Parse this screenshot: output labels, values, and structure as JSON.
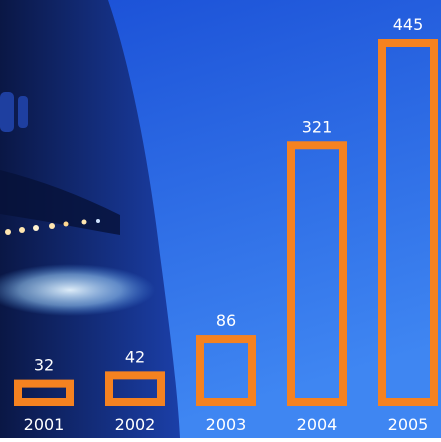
{
  "chart_data": {
    "type": "bar",
    "title": "",
    "xlabel": "",
    "ylabel": "",
    "categories": [
      "2001",
      "2002",
      "2003",
      "2004",
      "2005"
    ],
    "values": [
      32,
      42,
      86,
      321,
      445
    ],
    "ylim": [
      0,
      445
    ],
    "grid": false,
    "legend": "none",
    "colors": {
      "bar_outline": "#f58220",
      "label_text": "#ffffff",
      "sky_top": "#1a4fd6",
      "sky_bottom": "#3f86f2",
      "aircraft": "#0d1f5c"
    }
  }
}
